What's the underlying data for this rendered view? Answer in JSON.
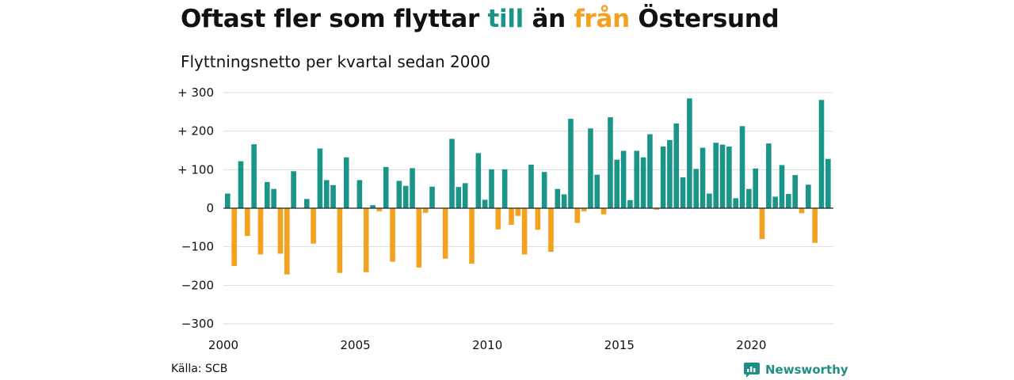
{
  "title": {
    "part1": "Oftast fler som flyttar ",
    "word_to": "till",
    "part2": " än ",
    "word_from": "från",
    "part3": " Östersund"
  },
  "subtitle": "Flyttningsnetto per kvartal sedan 2000",
  "source": "Källa: SCB",
  "brand": {
    "name": "Newsworthy",
    "icon": "newsworthy-logo-icon"
  },
  "colors": {
    "positive": "#1a9587",
    "negative": "#f3a11e",
    "grid": "#dddddd",
    "zero": "#222222"
  },
  "chart_data": {
    "type": "bar",
    "title": "Oftast fler som flyttar till än från Östersund",
    "subtitle": "Flyttningsnetto per kvartal sedan 2000",
    "xlabel": "",
    "ylabel": "",
    "x_start": 2000,
    "x_ticks": [
      "2000",
      "2005",
      "2010",
      "2015",
      "2020"
    ],
    "y_ticks": [
      300,
      200,
      100,
      0,
      -100,
      -200,
      -300
    ],
    "y_tick_labels": [
      "+ 300",
      "+ 200",
      "+ 100",
      "0",
      "−100",
      "−200",
      "−300"
    ],
    "ylim": [
      -300,
      300
    ],
    "grid": true,
    "legend": "none",
    "values": [
      38,
      -150,
      122,
      -72,
      166,
      -120,
      68,
      50,
      -118,
      -172,
      96,
      0,
      24,
      -92,
      155,
      73,
      60,
      -168,
      132,
      0,
      73,
      -166,
      8,
      -8,
      107,
      -139,
      71,
      58,
      104,
      -154,
      -12,
      56,
      0,
      -131,
      180,
      55,
      65,
      -144,
      143,
      22,
      101,
      -55,
      101,
      -43,
      -20,
      -120,
      113,
      -56,
      94,
      -113,
      50,
      36,
      232,
      -38,
      -8,
      207,
      87,
      -16,
      236,
      126,
      149,
      21,
      149,
      132,
      192,
      -4,
      160,
      177,
      220,
      80,
      285,
      102,
      157,
      38,
      170,
      165,
      160,
      26,
      213,
      50,
      103,
      -80,
      168,
      30,
      112,
      37,
      86,
      -13,
      61,
      -90,
      281,
      128
    ]
  }
}
